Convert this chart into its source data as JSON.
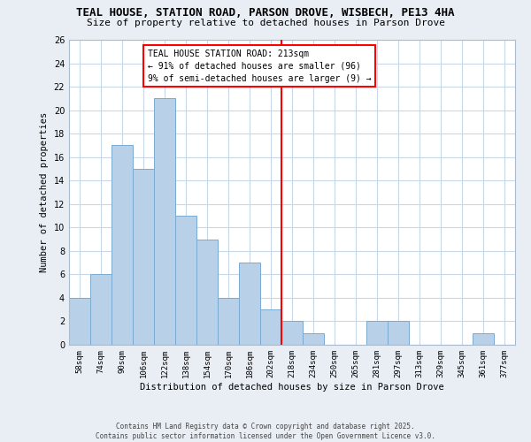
{
  "title": "TEAL HOUSE, STATION ROAD, PARSON DROVE, WISBECH, PE13 4HA",
  "subtitle": "Size of property relative to detached houses in Parson Drove",
  "xlabel": "Distribution of detached houses by size in Parson Drove",
  "ylabel": "Number of detached properties",
  "bins": [
    "58sqm",
    "74sqm",
    "90sqm",
    "106sqm",
    "122sqm",
    "138sqm",
    "154sqm",
    "170sqm",
    "186sqm",
    "202sqm",
    "218sqm",
    "234sqm",
    "250sqm",
    "265sqm",
    "281sqm",
    "297sqm",
    "313sqm",
    "329sqm",
    "345sqm",
    "361sqm",
    "377sqm"
  ],
  "values": [
    4,
    6,
    17,
    15,
    21,
    11,
    9,
    4,
    7,
    3,
    2,
    1,
    0,
    0,
    2,
    2,
    0,
    0,
    0,
    1,
    0
  ],
  "bar_color": "#b8d0e8",
  "bar_edge_color": "#7aaad0",
  "vline_color": "red",
  "annotation_text": "TEAL HOUSE STATION ROAD: 213sqm\n← 91% of detached houses are smaller (96)\n9% of semi-detached houses are larger (9) →",
  "annotation_box_color": "red",
  "ylim": [
    0,
    26
  ],
  "yticks": [
    0,
    2,
    4,
    6,
    8,
    10,
    12,
    14,
    16,
    18,
    20,
    22,
    24,
    26
  ],
  "footer_line1": "Contains HM Land Registry data © Crown copyright and database right 2025.",
  "footer_line2": "Contains public sector information licensed under the Open Government Licence v3.0.",
  "bg_color": "#e8eef4",
  "plot_bg_color": "#ffffff",
  "grid_color": "#c8d8e8"
}
